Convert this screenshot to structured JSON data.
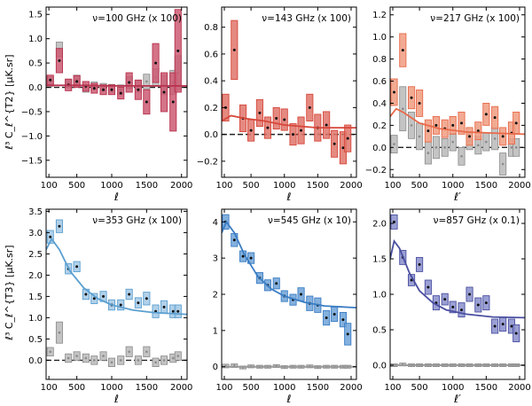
{
  "figure": {
    "ylabel_top": "ℓ³ C_ℓ^{T2}  [μK.sr]",
    "ylabel_bottom": "ℓ³ C_ℓ^{T3}  [μK.sr]",
    "xlabel": "ℓ"
  },
  "chart_data": [
    {
      "type": "scatter",
      "row": 0,
      "col": 0,
      "title": "ν=100 GHz (x 100)",
      "xlabel": "ℓ",
      "xlim": [
        60,
        2080
      ],
      "ylim": [
        -1.85,
        1.65
      ],
      "xticks": [
        100,
        500,
        1000,
        1500,
        2000
      ],
      "yticks": [
        -1.5,
        -1.0,
        -0.5,
        0.0,
        0.5,
        1.0,
        1.5
      ],
      "ytick_labels": [
        "−1.5",
        "−1.0",
        "−0.5",
        "0.0",
        "0.5",
        "1.0",
        "1.5"
      ],
      "color": "#b8324e",
      "fill": "#cc5a73",
      "gray_line": false,
      "ell": [
        120,
        250,
        380,
        500,
        630,
        750,
        880,
        1000,
        1130,
        1250,
        1380,
        1500,
        1630,
        1750,
        1880,
        1950
      ],
      "values": [
        0.15,
        0.55,
        0.05,
        0.12,
        0.02,
        -0.02,
        -0.05,
        -0.05,
        -0.12,
        0.1,
        -0.05,
        -0.3,
        0.5,
        -0.1,
        -0.3,
        0.75
      ],
      "box_half": [
        0.1,
        0.25,
        0.12,
        0.12,
        0.1,
        0.1,
        0.1,
        0.1,
        0.12,
        0.2,
        0.2,
        0.25,
        0.4,
        0.4,
        0.6,
        0.85
      ],
      "gray_values": [
        0.12,
        0.78,
        0.08,
        0.15,
        -0.02,
        0.03,
        0.0,
        -0.02,
        -0.05,
        0.1,
        0.02,
        0.12,
        0.2,
        0.05,
        0.1,
        0.3
      ],
      "gray_half": [
        0.1,
        0.15,
        0.08,
        0.1,
        0.08,
        0.08,
        0.08,
        0.08,
        0.1,
        0.12,
        0.12,
        0.15,
        0.18,
        0.2,
        0.25,
        0.35
      ],
      "model": [
        [
          60,
          0.04
        ],
        [
          500,
          0.04
        ],
        [
          1000,
          0.03
        ],
        [
          1500,
          0.03
        ],
        [
          2080,
          0.03
        ]
      ]
    },
    {
      "type": "scatter",
      "row": 0,
      "col": 1,
      "title": "ν=143 GHz (x 100)",
      "xlabel": "ℓ",
      "xlim": [
        60,
        2080
      ],
      "ylim": [
        -0.32,
        0.95
      ],
      "xticks": [
        100,
        500,
        1000,
        1500,
        2000
      ],
      "yticks": [
        -0.2,
        0.0,
        0.2,
        0.4,
        0.6,
        0.8
      ],
      "ytick_labels": [
        "−0.2",
        "0.0",
        "0.2",
        "0.4",
        "0.6",
        "0.8"
      ],
      "color": "#d6473a",
      "fill": "#e0756b",
      "gray_line": false,
      "ell": [
        120,
        250,
        380,
        500,
        630,
        750,
        880,
        1000,
        1130,
        1250,
        1380,
        1500,
        1630,
        1750,
        1880,
        1950
      ],
      "values": [
        0.2,
        0.63,
        0.12,
        0.03,
        0.16,
        0.05,
        0.12,
        0.11,
        0.0,
        0.03,
        0.2,
        0.05,
        0.07,
        -0.07,
        -0.1,
        -0.03
      ],
      "box_half": [
        0.1,
        0.22,
        0.1,
        0.08,
        0.1,
        0.08,
        0.08,
        0.08,
        0.08,
        0.1,
        0.1,
        0.1,
        0.1,
        0.1,
        0.12,
        0.1
      ],
      "gray_values": [],
      "gray_half": [],
      "model": [
        [
          60,
          0.1
        ],
        [
          200,
          0.14
        ],
        [
          400,
          0.12
        ],
        [
          700,
          0.1
        ],
        [
          1000,
          0.07
        ],
        [
          1500,
          0.05
        ],
        [
          2080,
          0.05
        ]
      ]
    },
    {
      "type": "scatter",
      "row": 0,
      "col": 2,
      "title": "ν=217 GHz (x 100)",
      "xlabel": "ℓ′",
      "xlim": [
        60,
        2080
      ],
      "ylim": [
        -0.27,
        1.27
      ],
      "xticks": [
        100,
        500,
        1000,
        1500,
        2000
      ],
      "yticks": [
        -0.2,
        0.0,
        0.2,
        0.4,
        0.6,
        0.8,
        1.0,
        1.2
      ],
      "ytick_labels": [
        "−0.2",
        "0.0",
        "0.2",
        "0.4",
        "0.6",
        "0.8",
        "1.0",
        "1.2"
      ],
      "color": "#e86a4a",
      "fill": "#f09c80",
      "gray_line": false,
      "ell": [
        120,
        250,
        380,
        500,
        630,
        750,
        880,
        1000,
        1130,
        1250,
        1380,
        1500,
        1630,
        1750,
        1880,
        1950
      ],
      "values": [
        0.5,
        0.88,
        0.45,
        0.4,
        0.15,
        0.2,
        0.17,
        0.2,
        0.22,
        0.1,
        0.15,
        0.3,
        0.27,
        0.1,
        0.13,
        0.22
      ],
      "box_half": [
        0.12,
        0.15,
        0.1,
        0.12,
        0.1,
        0.08,
        0.08,
        0.08,
        0.1,
        0.08,
        0.08,
        0.1,
        0.1,
        0.08,
        0.1,
        0.1
      ],
      "gray_values": [
        0.03,
        0.35,
        0.2,
        0.1,
        -0.05,
        0.0,
        0.0,
        0.05,
        -0.08,
        0.06,
        0.02,
        0.05,
        0.08,
        -0.15,
        0.0,
        0.0
      ],
      "gray_half": [
        0.08,
        0.2,
        0.12,
        0.12,
        0.1,
        0.1,
        0.08,
        0.08,
        0.08,
        0.08,
        0.08,
        0.08,
        0.1,
        0.1,
        0.08,
        0.08
      ],
      "model": [
        [
          60,
          0.28
        ],
        [
          150,
          0.35
        ],
        [
          250,
          0.32
        ],
        [
          500,
          0.22
        ],
        [
          800,
          0.17
        ],
        [
          1200,
          0.14
        ],
        [
          1600,
          0.13
        ],
        [
          2080,
          0.12
        ]
      ]
    },
    {
      "type": "scatter",
      "row": 1,
      "col": 0,
      "title": "ν=353 GHz (x 100)",
      "xlabel": "ℓ",
      "xlim": [
        60,
        2080
      ],
      "ylim": [
        -0.45,
        3.55
      ],
      "xticks": [
        100,
        500,
        1000,
        1500,
        2000
      ],
      "yticks": [
        0.0,
        0.5,
        1.0,
        1.5,
        2.0,
        2.5,
        3.0,
        3.5
      ],
      "ytick_labels": [
        "0.0",
        "0.5",
        "1.0",
        "1.5",
        "2.0",
        "2.5",
        "3.0",
        "3.5"
      ],
      "color": "#5b9fd0",
      "fill": "#a3c9e6",
      "gray_line": false,
      "ell": [
        120,
        250,
        380,
        500,
        630,
        750,
        880,
        1000,
        1130,
        1250,
        1380,
        1500,
        1630,
        1750,
        1880,
        1950
      ],
      "values": [
        2.9,
        3.15,
        2.15,
        2.2,
        1.55,
        1.45,
        1.5,
        1.3,
        1.3,
        1.55,
        1.35,
        1.45,
        1.15,
        1.25,
        1.15,
        1.15
      ],
      "box_half": [
        0.15,
        0.15,
        0.12,
        0.12,
        0.12,
        0.12,
        0.12,
        0.12,
        0.12,
        0.12,
        0.12,
        0.15,
        0.15,
        0.15,
        0.15,
        0.15
      ],
      "gray_values": [
        0.2,
        0.65,
        0.05,
        0.1,
        0.05,
        0.0,
        0.1,
        -0.05,
        0.0,
        0.2,
        0.0,
        0.2,
        -0.05,
        0.0,
        0.05,
        0.1
      ],
      "gray_half": [
        0.1,
        0.25,
        0.1,
        0.1,
        0.1,
        0.1,
        0.1,
        0.1,
        0.1,
        0.12,
        0.1,
        0.12,
        0.1,
        0.1,
        0.1,
        0.1
      ],
      "model": [
        [
          60,
          2.6
        ],
        [
          140,
          2.85
        ],
        [
          250,
          2.6
        ],
        [
          400,
          2.1
        ],
        [
          600,
          1.7
        ],
        [
          800,
          1.45
        ],
        [
          1000,
          1.3
        ],
        [
          1300,
          1.18
        ],
        [
          1600,
          1.12
        ],
        [
          2080,
          1.08
        ]
      ]
    },
    {
      "type": "scatter",
      "row": 1,
      "col": 1,
      "title": "ν=545 GHz (x 10)",
      "xlabel": "ℓ",
      "xlim": [
        60,
        2080
      ],
      "ylim": [
        -0.35,
        4.35
      ],
      "xticks": [
        100,
        500,
        1000,
        1500,
        2000
      ],
      "yticks": [
        0,
        1,
        2,
        3,
        4
      ],
      "ytick_labels": [
        "0",
        "1",
        "2",
        "3",
        "4"
      ],
      "color": "#3a7cc4",
      "fill": "#6ea3d8",
      "gray_line": true,
      "ell": [
        120,
        250,
        380,
        500,
        630,
        750,
        880,
        1000,
        1130,
        1250,
        1380,
        1500,
        1630,
        1750,
        1880,
        1950
      ],
      "values": [
        4.0,
        3.5,
        3.05,
        3.0,
        2.45,
        2.25,
        2.3,
        1.95,
        1.85,
        2.0,
        1.75,
        1.7,
        1.35,
        1.45,
        1.3,
        0.9
      ],
      "box_half": [
        0.2,
        0.18,
        0.15,
        0.15,
        0.15,
        0.15,
        0.15,
        0.15,
        0.15,
        0.18,
        0.2,
        0.2,
        0.2,
        0.2,
        0.2,
        0.3
      ],
      "gray_values": [
        0.02,
        0.03,
        -0.02,
        0.01,
        0.0,
        0.0,
        0.02,
        -0.01,
        0.0,
        0.0,
        0.01,
        -0.01,
        0.0,
        0.0,
        0.0,
        0.0
      ],
      "gray_half": [
        0.05,
        0.05,
        0.04,
        0.04,
        0.04,
        0.04,
        0.04,
        0.04,
        0.04,
        0.04,
        0.04,
        0.04,
        0.04,
        0.04,
        0.04,
        0.04
      ],
      "model": [
        [
          60,
          3.7
        ],
        [
          130,
          4.0
        ],
        [
          250,
          3.7
        ],
        [
          400,
          3.1
        ],
        [
          600,
          2.5
        ],
        [
          800,
          2.15
        ],
        [
          1000,
          1.95
        ],
        [
          1300,
          1.78
        ],
        [
          1600,
          1.68
        ],
        [
          2080,
          1.63
        ]
      ]
    },
    {
      "type": "scatter",
      "row": 1,
      "col": 2,
      "title": "ν=857 GHz (x 0.1)",
      "xlabel": "ℓ′",
      "xlim": [
        60,
        2080
      ],
      "ylim": [
        -0.2,
        2.2
      ],
      "xticks": [
        100,
        500,
        1000,
        1500,
        2000
      ],
      "yticks": [
        0.0,
        0.5,
        1.0,
        1.5,
        2.0
      ],
      "ytick_labels": [
        "0.0",
        "0.5",
        "1.0",
        "1.5",
        "2.0"
      ],
      "color": "#4a4fa0",
      "fill": "#8a8fcd",
      "gray_line": true,
      "ell": [
        120,
        250,
        380,
        500,
        630,
        750,
        880,
        1000,
        1130,
        1250,
        1380,
        1500,
        1630,
        1750,
        1880,
        1950
      ],
      "values": [
        2.02,
        1.52,
        1.2,
        1.42,
        1.1,
        0.88,
        0.93,
        0.82,
        0.78,
        1.0,
        0.85,
        0.88,
        0.55,
        0.58,
        0.55,
        0.45
      ],
      "box_half": [
        0.1,
        0.1,
        0.08,
        0.1,
        0.1,
        0.1,
        0.08,
        0.08,
        0.1,
        0.1,
        0.1,
        0.1,
        0.1,
        0.1,
        0.1,
        0.12
      ],
      "gray_values": [
        0.0,
        0.01,
        0.0,
        0.0,
        0.0,
        0.0,
        0.0,
        0.0,
        0.0,
        0.0,
        0.0,
        0.0,
        0.0,
        0.0,
        0.0,
        0.0
      ],
      "gray_half": [
        0.02,
        0.02,
        0.02,
        0.02,
        0.02,
        0.02,
        0.02,
        0.02,
        0.02,
        0.02,
        0.02,
        0.02,
        0.02,
        0.02,
        0.02,
        0.02
      ],
      "model": [
        [
          60,
          1.5
        ],
        [
          120,
          1.75
        ],
        [
          200,
          1.65
        ],
        [
          350,
          1.3
        ],
        [
          500,
          1.05
        ],
        [
          700,
          0.88
        ],
        [
          900,
          0.78
        ],
        [
          1200,
          0.72
        ],
        [
          1600,
          0.68
        ],
        [
          2080,
          0.67
        ]
      ]
    }
  ]
}
